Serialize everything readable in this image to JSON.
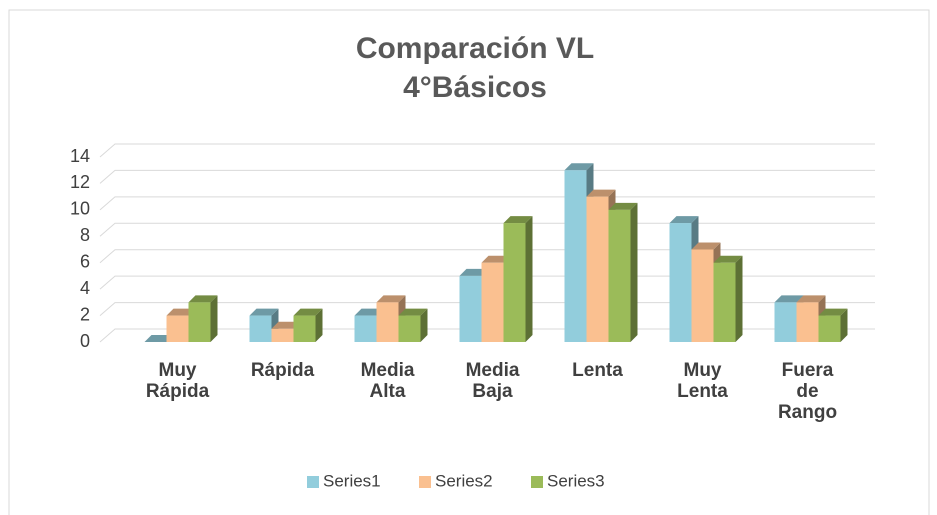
{
  "chart_data": {
    "type": "bar3d",
    "title": [
      "Comparación VL",
      "4°Básicos"
    ],
    "categories": [
      "Muy Rápida",
      "Rápida",
      "Media Alta",
      "Media Baja",
      "Lenta",
      "Muy Lenta",
      "Fuera de Rango"
    ],
    "series": [
      {
        "name": "Series1",
        "color": "#92cddc",
        "values": [
          0,
          2,
          2,
          5,
          13,
          9,
          3
        ]
      },
      {
        "name": "Series2",
        "color": "#fac090",
        "values": [
          2,
          1,
          3,
          6,
          11,
          7,
          3
        ]
      },
      {
        "name": "Series3",
        "color": "#9bbb59",
        "values": [
          3,
          2,
          2,
          9,
          10,
          6,
          2
        ]
      }
    ],
    "ylim": [
      0,
      14
    ],
    "yticks": [
      0,
      2,
      4,
      6,
      8,
      10,
      12,
      14
    ],
    "grid": true,
    "legend": "bottom"
  }
}
